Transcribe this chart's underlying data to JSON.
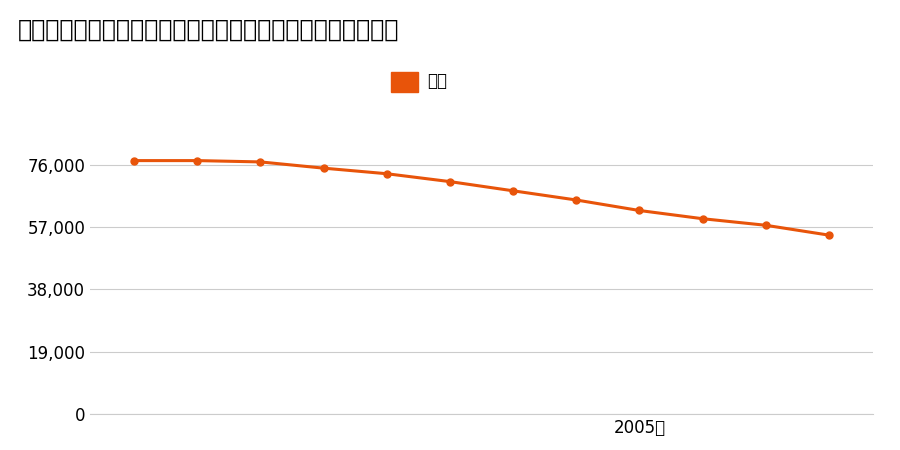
{
  "title": "宮城県仙台市宮城野区蒲生字南屋ヶ城１８番１３の地価推移",
  "legend_label": "価格",
  "years": [
    1997,
    1998,
    1999,
    2000,
    2001,
    2002,
    2003,
    2004,
    2005,
    2006,
    2007,
    2008
  ],
  "values": [
    77200,
    77200,
    76800,
    74900,
    73200,
    70800,
    68000,
    65200,
    62000,
    59500,
    57500,
    54500
  ],
  "line_color": "#e8540a",
  "marker_color": "#e8540a",
  "background_color": "#ffffff",
  "yticks": [
    0,
    19000,
    38000,
    57000,
    76000
  ],
  "xlabel_year": 2005,
  "xlabel_text": "2005年",
  "ylim_max": 85000,
  "grid_color": "#cccccc",
  "title_fontsize": 17,
  "axis_fontsize": 12,
  "legend_fontsize": 12
}
